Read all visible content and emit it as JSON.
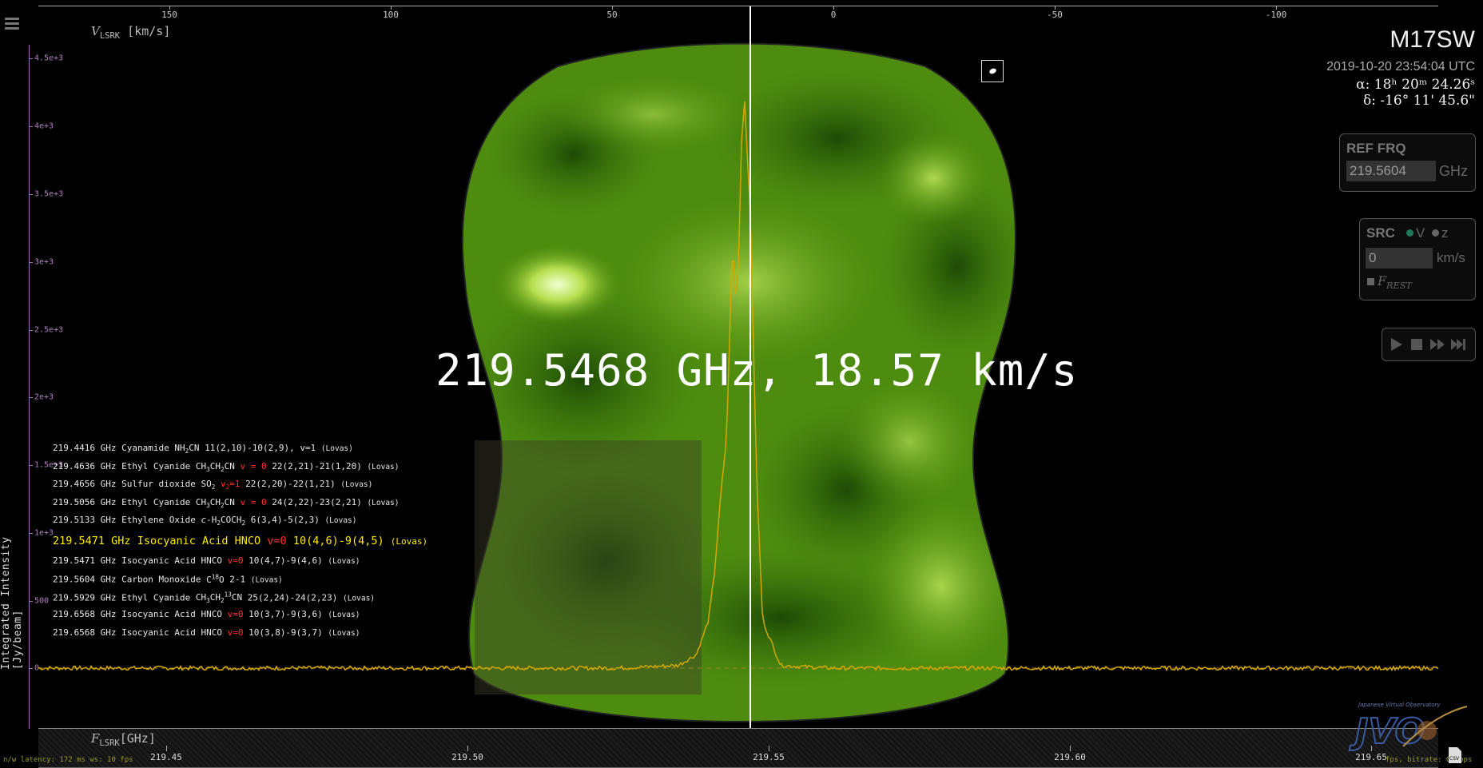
{
  "velocity_axis": {
    "label_v": "V",
    "label_sub": "LSRK",
    "label_unit": " [km/s]",
    "ticks": [
      "150",
      "100",
      "50",
      "0",
      "-50",
      "-100"
    ]
  },
  "intensity_axis": {
    "title": "Integrated Intensity [Jy/beam]",
    "ticks": [
      "4.5e+3",
      "4e+3",
      "3.5e+3",
      "3e+3",
      "2.5e+3",
      "2e+3",
      "1.5e+3",
      "1e+3",
      "500",
      "0"
    ]
  },
  "frequency_axis": {
    "label_f": "F",
    "label_sub": "LSRK",
    "label_unit": "[GHz]",
    "ticks": [
      "219.45",
      "219.50",
      "219.55",
      "219.60",
      "219.65"
    ]
  },
  "cursor_readout": "219.5468 GHz, 18.57 km/s",
  "header": {
    "object": "M17SW",
    "datetime": "2019-10-20 23:54:04 UTC",
    "ra": "α: 18ʰ 20ᵐ 24.26ˢ",
    "dec": "δ: -16° 11' 45.6\""
  },
  "ref_frq": {
    "title": "REF FRQ",
    "value": "219.5604",
    "unit": "GHz"
  },
  "src": {
    "title": "SRC",
    "option_v": "V",
    "option_z": "z",
    "value": "0",
    "unit": "km/s",
    "frest_label": "F",
    "frest_sub": "REST"
  },
  "player": {
    "play_icon": "play-icon",
    "stop_icon": "stop-icon",
    "ffwd_icon": "fast-forward-icon",
    "end_icon": "skip-end-icon"
  },
  "spectral_lines": [
    {
      "freq": "219.4416 GHz",
      "species": "Cyanamide NH",
      "formula_html": "NH<sub>2</sub>CN",
      "name": "Cyanamide",
      "red": "",
      "trans": "11(2,10)-10(2,9), v=1",
      "db": "(Lovas)"
    },
    {
      "freq": "219.4636 GHz",
      "name": "Ethyl Cyanide",
      "formula_html": "CH<sub>3</sub>CH<sub>2</sub>CN",
      "red": "v = 0",
      "trans": "22(2,21)-21(1,20)",
      "db": "(Lovas)"
    },
    {
      "freq": "219.4656 GHz",
      "name": "Sulfur dioxide",
      "formula_html": "SO<sub>2</sub>",
      "red": "v<sub>2</sub>=1",
      "trans": "22(2,20)-22(1,21)",
      "db": "(Lovas)"
    },
    {
      "freq": "219.5056 GHz",
      "name": "Ethyl Cyanide",
      "formula_html": "CH<sub>3</sub>CH<sub>2</sub>CN",
      "red": "v = 0",
      "trans": "24(2,22)-23(2,21)",
      "db": "(Lovas)"
    },
    {
      "freq": "219.5133 GHz",
      "name": "Ethylene Oxide",
      "formula_html": "<i>c</i>-H<sub>2</sub>COCH<sub>2</sub>",
      "red": "",
      "trans": "6(3,4)-5(2,3)",
      "db": "(Lovas)"
    },
    {
      "freq": "219.5471 GHz",
      "name": "Isocyanic Acid",
      "formula_html": "HNCO",
      "red": "v=0",
      "trans": "10(4,6)-9(4,5)",
      "db": "(Lovas)",
      "highlight": true
    },
    {
      "freq": "219.5471 GHz",
      "name": "Isocyanic Acid",
      "formula_html": "HNCO",
      "red": "v=0",
      "trans": "10(4,7)-9(4,6)",
      "db": "(Lovas)"
    },
    {
      "freq": "219.5604 GHz",
      "name": "Carbon Monoxide",
      "formula_html": "C<sup>18</sup>O",
      "red": "",
      "trans": "2-1",
      "db": "(Lovas)"
    },
    {
      "freq": "219.5929 GHz",
      "name": "Ethyl Cyanide",
      "formula_html": "CH<sub>3</sub>CH<sub>2</sub><sup>13</sup>CN",
      "red": "",
      "trans": "25(2,24)-24(2,23)",
      "db": "(Lovas)"
    },
    {
      "freq": "219.6568 GHz",
      "name": "Isocyanic Acid",
      "formula_html": "HNCO",
      "red": "v=0",
      "trans": "10(3,7)-9(3,6)",
      "db": "(Lovas)"
    },
    {
      "freq": "219.6568 GHz",
      "name": "Isocyanic Acid",
      "formula_html": "HNCO",
      "red": "v=0",
      "trans": "10(3,8)-9(3,7)",
      "db": "(Lovas)"
    }
  ],
  "status_left": "n/w latency: 172 ms ws: 10 fps",
  "status_right": "fps, bitrate: 0 kbps",
  "logo_text": "JVO",
  "logo_caption": "Japanese Virtual Observatory",
  "csv_icon": "csv-download-icon",
  "menu_icon": "hamburger-menu-icon",
  "colors": {
    "spectrum": "#d4a800",
    "axis_purple": "#a070b0",
    "highlight": "#ffea00",
    "map_green": "#5a9a10"
  },
  "chart_data": {
    "type": "line",
    "title": "",
    "xlabel": "F_LSRK [GHz]",
    "ylabel": "Integrated Intensity [Jy/beam]",
    "xlim": [
      219.42,
      219.665
    ],
    "ylim": [
      -200,
      4700
    ],
    "series": [
      {
        "x": [
          219.42,
          219.5,
          219.525,
          219.535,
          219.538,
          219.54,
          219.541,
          219.542,
          219.543,
          219.5435,
          219.544,
          219.5445,
          219.545,
          219.5455,
          219.546,
          219.547,
          219.548,
          219.549,
          219.552,
          219.56,
          219.6,
          219.665
        ],
        "y": [
          0,
          0,
          0,
          20,
          100,
          350,
          700,
          1250,
          1700,
          2400,
          3150,
          2700,
          3000,
          3900,
          4200,
          3300,
          1400,
          350,
          20,
          0,
          0,
          0
        ]
      }
    ]
  }
}
